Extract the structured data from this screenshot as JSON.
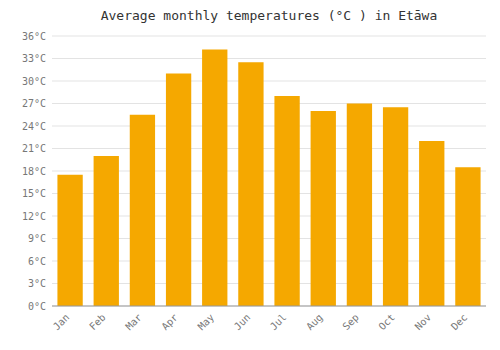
{
  "chart_data": {
    "type": "bar",
    "title": "Average monthly temperatures (°C ) in Etāwa",
    "categories": [
      "Jan",
      "Feb",
      "Mar",
      "Apr",
      "May",
      "Jun",
      "Jul",
      "Aug",
      "Sep",
      "Oct",
      "Nov",
      "Dec"
    ],
    "values": [
      17.5,
      20.0,
      25.5,
      31.0,
      34.2,
      32.5,
      28.0,
      26.0,
      27.0,
      26.5,
      22.0,
      18.5
    ],
    "color": "#F5A800",
    "ylim": [
      0,
      36
    ],
    "yticks": [
      {
        "value": 0,
        "label": "0°C"
      },
      {
        "value": 3,
        "label": "3°C"
      },
      {
        "value": 6,
        "label": "6°C"
      },
      {
        "value": 9,
        "label": "9°C"
      },
      {
        "value": 12,
        "label": "12°C"
      },
      {
        "value": 15,
        "label": "15°C"
      },
      {
        "value": 18,
        "label": "18°C"
      },
      {
        "value": 21,
        "label": "21°C"
      },
      {
        "value": 24,
        "label": "24°C"
      },
      {
        "value": 27,
        "label": "27°C"
      },
      {
        "value": 30,
        "label": "30°C"
      },
      {
        "value": 33,
        "label": "33°C"
      },
      {
        "value": 36,
        "label": "36°C"
      }
    ],
    "grid": true
  }
}
